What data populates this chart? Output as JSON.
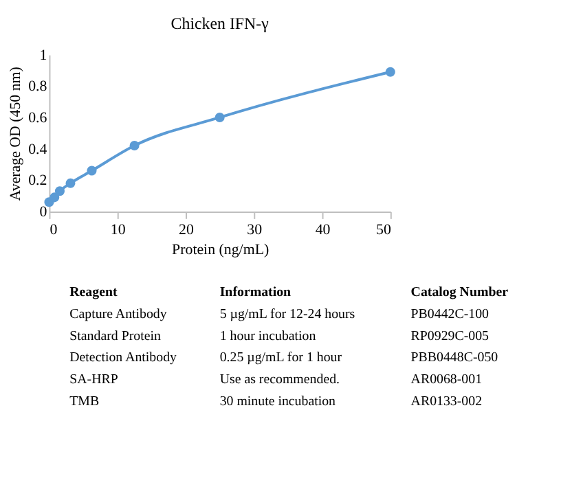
{
  "chart_data": {
    "type": "line",
    "title": "Chicken IFN-γ",
    "xlabel": "Protein (ng/mL)",
    "ylabel": "Average OD (450 nm)",
    "x": [
      0,
      0.78,
      1.56,
      3.125,
      6.25,
      12.5,
      25,
      50
    ],
    "series": [
      {
        "color": "#5b9bd5",
        "values": [
          0.06,
          0.09,
          0.13,
          0.18,
          0.26,
          0.42,
          0.6,
          0.89
        ]
      }
    ],
    "xlim": [
      0,
      50
    ],
    "xticks": [
      0,
      10,
      20,
      30,
      40,
      50
    ],
    "ylim": [
      0,
      1
    ],
    "yticks": [
      0,
      0.2,
      0.4,
      0.6,
      0.8,
      1
    ],
    "grid": false,
    "marker": "circle",
    "line_style": "solid",
    "annotations": [
      "Reagent",
      "Information",
      "Catalog Number",
      "Capture Antibody",
      "5 µg/mL for 12-24 hours",
      "PB0442C-100",
      "Standard Protein",
      "1 hour incubation",
      "RP0929C-005",
      "Detection Antibody",
      "0.25 µg/mL for 1 hour",
      "PBB0448C-050",
      "SA-HRP",
      "Use as recommended.",
      "AR0068-001",
      "TMB",
      "30 minute incubation",
      "AR0133-002"
    ]
  }
}
